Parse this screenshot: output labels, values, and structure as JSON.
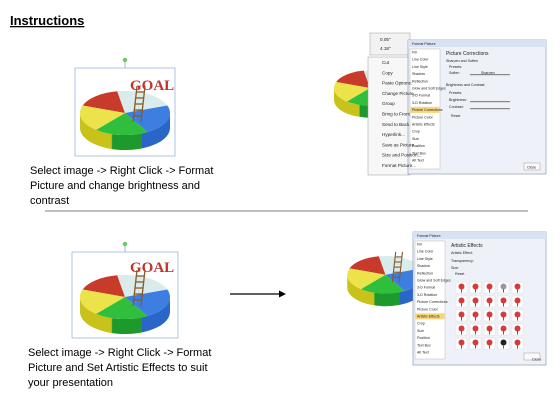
{
  "header": {
    "title": "Instructions"
  },
  "step1": {
    "image_label": "GOAL",
    "toolbar": [
      "0.05\"",
      "4.18\""
    ],
    "menu": [
      "Cut",
      "Copy",
      "Paste Options:",
      "Change Picture...",
      "Group",
      "Bring to Front",
      "Send to Back",
      "Hyperlink...",
      "Save as Picture...",
      "Size and Position...",
      "Format Picture..."
    ],
    "dialog": {
      "title": "Format Picture",
      "list": [
        "Fill",
        "Line Color",
        "Line Style",
        "Shadow",
        "Reflection",
        "Glow and Soft Edges",
        "3-D Format",
        "3-D Rotation",
        "Picture Corrections",
        "Picture Color",
        "Artistic Effects",
        "Crop",
        "Size",
        "Position",
        "Text Box",
        "Alt Text"
      ],
      "heading": "Picture Corrections",
      "fields": [
        "Sharpen and Soften",
        "Presets:",
        "Soften",
        "Sharpen",
        "Brightness and Contrast",
        "Presets:",
        "Brightness:",
        "Contrast:",
        "Reset"
      ],
      "close": "Close"
    },
    "caption": [
      "Select image -> Right Click -> Format",
      "Picture and change brightness and",
      "contrast"
    ]
  },
  "step2": {
    "image_label": "GOAL",
    "dialog": {
      "title": "Format Picture",
      "list": [
        "Fill",
        "Line Color",
        "Line Style",
        "Shadow",
        "Reflection",
        "Glow and Soft Edges",
        "3-D Format",
        "3-D Rotation",
        "Picture Corrections",
        "Picture Color",
        "Artistic Effects",
        "Crop",
        "Size",
        "Position",
        "Text Box",
        "Alt Text"
      ],
      "heading": "Artistic Effects",
      "fields": [
        "Artistic Effect:",
        "Transparency:",
        "Size:",
        "Reset"
      ],
      "close": "Close"
    },
    "caption": [
      "Select image -> Right Click -> Format",
      "Picture and Set Artistic Effects to suit",
      "your presentation"
    ]
  }
}
